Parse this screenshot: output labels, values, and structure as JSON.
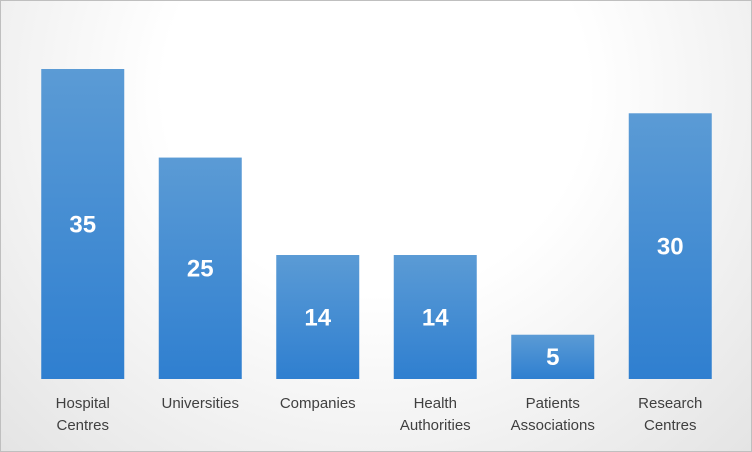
{
  "chart_data": {
    "type": "bar",
    "categories": [
      "Hospital Centres",
      "Universities",
      "Companies",
      "Health Authorities",
      "Patients Associations",
      "Research Centres"
    ],
    "values": [
      35,
      25,
      14,
      14,
      5,
      30
    ],
    "color": "#4a90d6"
  }
}
